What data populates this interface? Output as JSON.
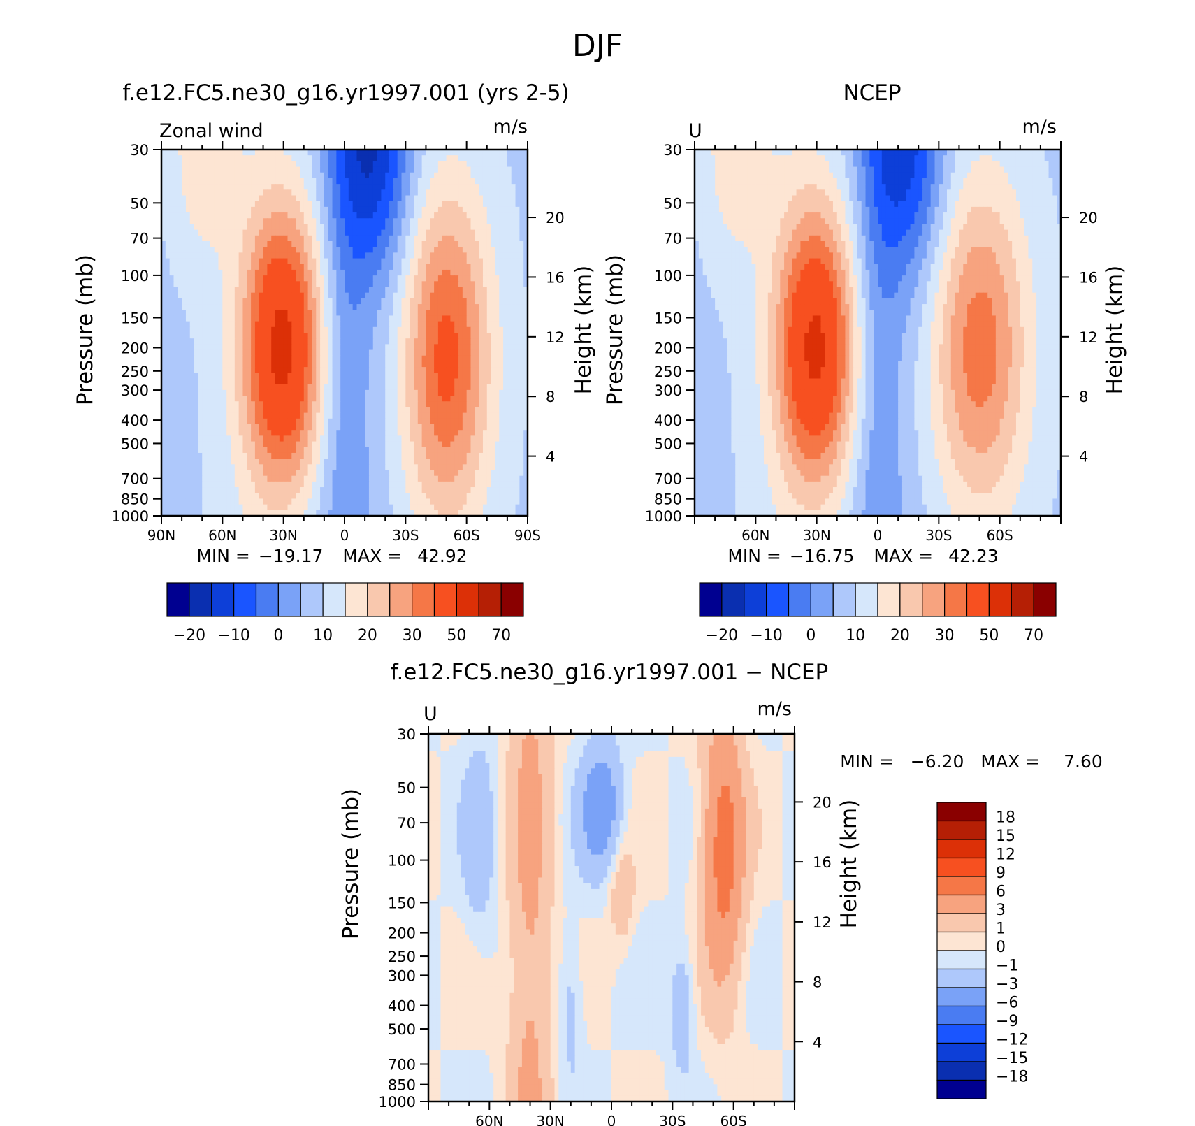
{
  "figure_title": "DJF",
  "colors": {
    "ramp16": [
      "#000090",
      "#0a2fb0",
      "#0d3fd8",
      "#1a55ff",
      "#4a7cf2",
      "#7aa2f7",
      "#aec8fb",
      "#d6e7fb",
      "#fde5d3",
      "#f9c8ae",
      "#f7a37f",
      "#f57747",
      "#f75020",
      "#dc3007",
      "#b51f05",
      "#8a0000"
    ],
    "diff_ramp": [
      "#000090",
      "#0a2fb0",
      "#0d3fd8",
      "#1a55ff",
      "#4a7cf2",
      "#7aa2f7",
      "#aec8fb",
      "#d6e7fb",
      "#fde5d3",
      "#f9c8ae",
      "#f7a37f",
      "#f57747",
      "#f75020",
      "#dc3007",
      "#b51f05",
      "#8a0000"
    ]
  },
  "chart_data": [
    {
      "type": "heatmap",
      "title": "f.e12.FC5.ne30_g16.yr1997.001 (yrs 2-5)",
      "left_label": "Zonal wind",
      "units": "m/s",
      "ylabel": "Pressure (mb)",
      "y2label": "Height (km)",
      "x_ticks": [
        "90N",
        "60N",
        "30N",
        "0",
        "30S",
        "60S",
        "90S"
      ],
      "x_range": [
        90,
        -90
      ],
      "y_ticks": [
        "30",
        "50",
        "70",
        "100",
        "150",
        "200",
        "250",
        "300",
        "400",
        "500",
        "700",
        "850",
        "1000"
      ],
      "y_range": [
        1000,
        30
      ],
      "y_log": true,
      "y2_ticks": [
        "4",
        "8",
        "12",
        "16",
        "20"
      ],
      "stats": {
        "min_label": "MIN =",
        "min": "−19.17",
        "max_label": "MAX =",
        "max": "42.92"
      },
      "colorbar_labels": [
        "−20",
        "−10",
        "0",
        "10",
        "20",
        "30",
        "50",
        "70"
      ],
      "jets": [
        {
          "lat": 30,
          "p": 200,
          "speed": 42.92,
          "width_lat": 20,
          "height": 1.4
        },
        {
          "lat": -50,
          "p": 220,
          "speed": 32,
          "width_lat": 22,
          "height": 1.6
        }
      ],
      "easterly_min": {
        "lat": -15,
        "p": 30,
        "speed": -19.17
      }
    },
    {
      "type": "heatmap",
      "title": "NCEP",
      "left_label": "U",
      "units": "m/s",
      "ylabel": "Pressure (mb)",
      "y2label": "Height (km)",
      "x_ticks": [
        "60N",
        "30N",
        "0",
        "30S",
        "60S"
      ],
      "x_range": [
        90,
        -90
      ],
      "y_ticks": [
        "30",
        "50",
        "70",
        "100",
        "150",
        "200",
        "250",
        "300",
        "400",
        "500",
        "700",
        "850",
        "1000"
      ],
      "y_range": [
        1000,
        30
      ],
      "y_log": true,
      "y2_ticks": [
        "4",
        "8",
        "12",
        "16",
        "20"
      ],
      "stats": {
        "min_label": "MIN =",
        "min": "−16.75",
        "max_label": "MAX =",
        "max": "42.23"
      },
      "colorbar_labels": [
        "−20",
        "−10",
        "0",
        "10",
        "20",
        "30",
        "50",
        "70"
      ],
      "jets": [
        {
          "lat": 30,
          "p": 200,
          "speed": 42.23,
          "width_lat": 20,
          "height": 1.4
        },
        {
          "lat": -50,
          "p": 200,
          "speed": 28,
          "width_lat": 24,
          "height": 1.6
        }
      ],
      "easterly_min": {
        "lat": -15,
        "p": 30,
        "speed": -16.75
      }
    },
    {
      "type": "heatmap",
      "title": "f.e12.FC5.ne30_g16.yr1997.001 − NCEP",
      "left_label": "U",
      "units": "m/s",
      "ylabel": "Pressure (mb)",
      "y2label": "Height (km)",
      "x_ticks": [
        "60N",
        "30N",
        "0",
        "30S",
        "60S"
      ],
      "x_range": [
        90,
        -90
      ],
      "y_ticks": [
        "30",
        "50",
        "70",
        "100",
        "150",
        "200",
        "250",
        "300",
        "400",
        "500",
        "700",
        "850",
        "1000"
      ],
      "y_range": [
        1000,
        30
      ],
      "y_log": true,
      "y2_ticks": [
        "4",
        "8",
        "12",
        "16",
        "20"
      ],
      "stats": {
        "min_label": "MIN =",
        "min": "−6.20",
        "max_label": "MAX =",
        "max": "7.60"
      },
      "colorbar_labels": [
        "18",
        "15",
        "12",
        "9",
        "6",
        "3",
        "1",
        "0",
        "−1",
        "−3",
        "−6",
        "−9",
        "−12",
        "−15",
        "−18"
      ]
    }
  ]
}
